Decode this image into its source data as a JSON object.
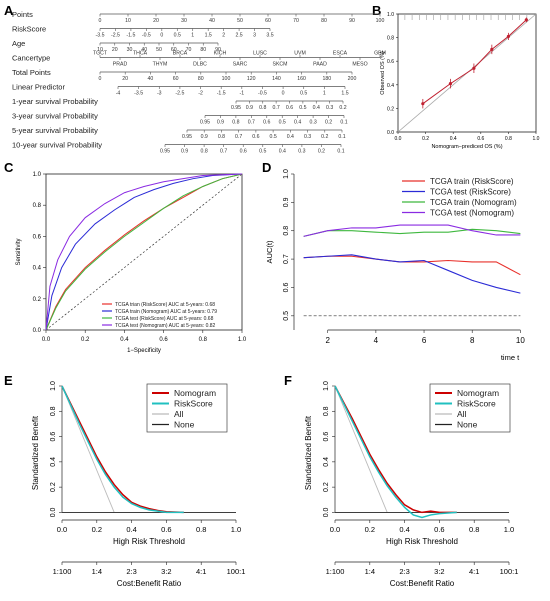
{
  "panels": {
    "A": "A",
    "B": "B",
    "C": "C",
    "D": "D",
    "E": "E",
    "F": "F"
  },
  "chart_data": [
    {
      "panel": "A",
      "type": "table",
      "rows": [
        {
          "label": "Points",
          "ticks": [
            "0",
            "10",
            "20",
            "30",
            "40",
            "50",
            "60",
            "70",
            "80",
            "90",
            "100"
          ]
        },
        {
          "label": "RiskScore",
          "ticks": [
            "-3.5",
            "-2.5",
            "-1.5",
            "-0.5",
            "0",
            "0.5",
            "1",
            "1.5",
            "2",
            "2.5",
            "3",
            "3.5"
          ]
        },
        {
          "label": "Age",
          "ticks": [
            "10",
            "20",
            "30",
            "40",
            "50",
            "60",
            "70",
            "80",
            "90"
          ]
        },
        {
          "label": "Cancertype",
          "ticks": [
            "TGCT",
            "PRAD",
            "THCA",
            "THYM",
            "BRCA",
            "DLBC",
            "KICH",
            "SARC",
            "LUSC",
            "SKCM",
            "UVM",
            "PAAD",
            "ESCA",
            "MESO",
            "GBM"
          ]
        },
        {
          "label": "Total Points",
          "ticks": [
            "0",
            "20",
            "40",
            "60",
            "80",
            "100",
            "120",
            "140",
            "160",
            "180",
            "200"
          ]
        },
        {
          "label": "Linear Predictor",
          "ticks": [
            "-4",
            "-3.5",
            "-3",
            "-2.5",
            "-2",
            "-1.5",
            "-1",
            "-0.5",
            "0",
            "0.5",
            "1",
            "1.5"
          ]
        },
        {
          "label": "1-year survival Probability",
          "ticks": [
            "0.95",
            "0.9",
            "0.8",
            "0.7",
            "0.6",
            "0.5",
            "0.4",
            "0.3",
            "0.2"
          ]
        },
        {
          "label": "3-year survival Probability",
          "ticks": [
            "0.95",
            "0.9",
            "0.8",
            "0.7",
            "0.6",
            "0.5",
            "0.4",
            "0.3",
            "0.2",
            "0.1"
          ]
        },
        {
          "label": "5-year survival Probability",
          "ticks": [
            "0.95",
            "0.9",
            "0.8",
            "0.7",
            "0.6",
            "0.5",
            "0.4",
            "0.3",
            "0.2",
            "0.1"
          ]
        },
        {
          "label": "10-year survival Probability",
          "ticks": [
            "0.95",
            "0.9",
            "0.8",
            "0.7",
            "0.6",
            "0.5",
            "0.4",
            "0.3",
            "0.2",
            "0.1"
          ]
        }
      ]
    },
    {
      "panel": "B",
      "type": "line",
      "xlabel": "Nomogram−prediced OS (%)",
      "ylabel": "Observed OS (%)",
      "xlim": [
        0,
        1
      ],
      "ylim": [
        0,
        1
      ],
      "xticks": [
        "0.0",
        "0.2",
        "0.4",
        "0.6",
        "0.8",
        "1.0"
      ],
      "yticks": [
        "0.0",
        "0.2",
        "0.4",
        "0.6",
        "0.8",
        "1.0"
      ],
      "points": [
        {
          "x": 0.18,
          "y": 0.24,
          "lo": 0.2,
          "hi": 0.28
        },
        {
          "x": 0.38,
          "y": 0.41,
          "lo": 0.37,
          "hi": 0.45
        },
        {
          "x": 0.55,
          "y": 0.54,
          "lo": 0.5,
          "hi": 0.58
        },
        {
          "x": 0.68,
          "y": 0.7,
          "lo": 0.66,
          "hi": 0.74
        },
        {
          "x": 0.8,
          "y": 0.81,
          "lo": 0.78,
          "hi": 0.84
        },
        {
          "x": 0.93,
          "y": 0.95,
          "lo": 0.93,
          "hi": 0.97
        }
      ]
    },
    {
      "panel": "C",
      "type": "line",
      "xlabel": "1−Specificity",
      "ylabel": "Sensitivity",
      "xlim": [
        0,
        1
      ],
      "ylim": [
        0,
        1
      ],
      "xticks": [
        "0.0",
        "0.2",
        "0.4",
        "0.6",
        "0.8",
        "1.0"
      ],
      "yticks": [
        "0.0",
        "0.2",
        "0.4",
        "0.6",
        "0.8",
        "1.0"
      ],
      "legend": "bottom-right",
      "series": [
        {
          "name": "TCGA trian (RiskScore) AUC at 5-years: 0.68",
          "color": "#e8302b",
          "x": [
            0,
            0.05,
            0.1,
            0.2,
            0.3,
            0.4,
            0.5,
            0.6,
            0.7,
            0.8,
            0.9,
            1.0
          ],
          "y": [
            0,
            0.15,
            0.26,
            0.4,
            0.51,
            0.61,
            0.7,
            0.78,
            0.85,
            0.92,
            0.97,
            1.0
          ]
        },
        {
          "name": "TCGA train (Nomogram) AUC at 5-years: 0.79",
          "color": "#2b2bd6",
          "x": [
            0,
            0.03,
            0.08,
            0.15,
            0.25,
            0.35,
            0.45,
            0.55,
            0.65,
            0.75,
            0.85,
            1.0
          ],
          "y": [
            0,
            0.22,
            0.4,
            0.55,
            0.68,
            0.77,
            0.85,
            0.9,
            0.94,
            0.97,
            0.99,
            1.0
          ]
        },
        {
          "name": "TCGA test (RiskScore) AUC at 5-years: 0.68",
          "color": "#3fb83f",
          "x": [
            0,
            0.05,
            0.1,
            0.2,
            0.3,
            0.4,
            0.5,
            0.6,
            0.7,
            0.8,
            0.9,
            1.0
          ],
          "y": [
            0,
            0.14,
            0.25,
            0.39,
            0.5,
            0.6,
            0.69,
            0.78,
            0.86,
            0.92,
            0.97,
            1.0
          ]
        },
        {
          "name": "TCGA test (Nomogram) AUC at 5-years: 0.82",
          "color": "#8a2be2",
          "x": [
            0,
            0.02,
            0.06,
            0.12,
            0.2,
            0.3,
            0.4,
            0.5,
            0.6,
            0.7,
            0.8,
            1.0
          ],
          "y": [
            0,
            0.28,
            0.45,
            0.6,
            0.72,
            0.81,
            0.88,
            0.92,
            0.95,
            0.97,
            0.99,
            1.0
          ]
        }
      ]
    },
    {
      "panel": "D",
      "type": "line",
      "xlabel": "time t",
      "ylabel": "AUC(t)",
      "xlim": [
        1,
        10
      ],
      "ylim": [
        0.45,
        1.0
      ],
      "xticks": [
        2,
        4,
        6,
        8,
        10
      ],
      "yticks": [
        "0.5",
        "0.6",
        "0.7",
        "0.8",
        "0.9",
        "1.0"
      ],
      "reference": 0.5,
      "legend": "top-right",
      "x": [
        1,
        2,
        3,
        4,
        5,
        6,
        7,
        8,
        9,
        10
      ],
      "series": [
        {
          "name": "TCGA train (RiskScore)",
          "color": "#e8302b",
          "y": [
            0.705,
            0.71,
            0.71,
            0.7,
            0.69,
            0.69,
            0.695,
            0.69,
            0.69,
            0.645
          ]
        },
        {
          "name": "TCGA test (RiskScore)",
          "color": "#2b2bd6",
          "y": [
            0.705,
            0.71,
            0.715,
            0.7,
            0.69,
            0.695,
            0.66,
            0.625,
            0.6,
            0.58
          ]
        },
        {
          "name": "TCGA train (Nomogram)",
          "color": "#3fb83f",
          "y": [
            0.78,
            0.8,
            0.8,
            0.795,
            0.79,
            0.795,
            0.795,
            0.805,
            0.8,
            0.79
          ]
        },
        {
          "name": "TCGA test (Nomogram)",
          "color": "#8a2be2",
          "y": [
            0.78,
            0.8,
            0.81,
            0.81,
            0.82,
            0.82,
            0.82,
            0.8,
            0.785,
            0.785
          ]
        }
      ]
    },
    {
      "panel": "E",
      "type": "line",
      "xlabel": "High Risk Threshold",
      "xlabel2": "Cost:Benefit Ratio",
      "ylabel": "Standardized Benefit",
      "xlim": [
        0,
        1
      ],
      "ylim": [
        0,
        1
      ],
      "xticks": [
        "0.0",
        "0.2",
        "0.4",
        "0.6",
        "0.8",
        "1.0"
      ],
      "yticks": [
        "0.0",
        "0.2",
        "0.4",
        "0.6",
        "0.8",
        "1.0"
      ],
      "ratio_ticks": [
        "1:100",
        "1:4",
        "2:3",
        "3:2",
        "4:1",
        "100:1"
      ],
      "legend": "top-right",
      "series": [
        {
          "name": "Nomogram",
          "color": "#cc0000",
          "x": [
            0,
            0.05,
            0.1,
            0.15,
            0.2,
            0.25,
            0.3,
            0.35,
            0.4,
            0.45,
            0.5,
            0.55,
            0.6,
            0.7
          ],
          "y": [
            1.0,
            0.86,
            0.72,
            0.58,
            0.44,
            0.32,
            0.22,
            0.14,
            0.08,
            0.05,
            0.03,
            0.015,
            0.005,
            0.0
          ]
        },
        {
          "name": "RiskScore",
          "color": "#20c0c0",
          "x": [
            0,
            0.05,
            0.1,
            0.15,
            0.2,
            0.25,
            0.3,
            0.35,
            0.4,
            0.45,
            0.5,
            0.55,
            0.6,
            0.7
          ],
          "y": [
            1.0,
            0.85,
            0.7,
            0.56,
            0.42,
            0.3,
            0.2,
            0.12,
            0.07,
            0.04,
            0.02,
            0.01,
            0.0,
            0.0
          ]
        },
        {
          "name": "All",
          "color": "#bbbbbb",
          "x": [
            0,
            0.3
          ],
          "y": [
            1.0,
            0.0
          ]
        },
        {
          "name": "None",
          "color": "#222222",
          "x": [
            0,
            1
          ],
          "y": [
            0,
            0
          ]
        }
      ]
    },
    {
      "panel": "F",
      "type": "line",
      "xlabel": "High Risk Threshold",
      "xlabel2": "Cost:Benefit Ratio",
      "ylabel": "Standardized Benefit",
      "xlim": [
        0,
        1
      ],
      "ylim": [
        0,
        1
      ],
      "xticks": [
        "0.0",
        "0.2",
        "0.4",
        "0.6",
        "0.8",
        "1.0"
      ],
      "yticks": [
        "0.0",
        "0.2",
        "0.4",
        "0.6",
        "0.8",
        "1.0"
      ],
      "ratio_ticks": [
        "1:100",
        "1:4",
        "2:3",
        "3:2",
        "4:1",
        "100:1"
      ],
      "legend": "top-right",
      "series": [
        {
          "name": "Nomogram",
          "color": "#cc0000",
          "x": [
            0,
            0.05,
            0.1,
            0.15,
            0.2,
            0.25,
            0.3,
            0.35,
            0.4,
            0.45,
            0.5,
            0.55,
            0.6,
            0.7
          ],
          "y": [
            1.0,
            0.87,
            0.74,
            0.6,
            0.46,
            0.34,
            0.23,
            0.14,
            0.06,
            0.02,
            0.0,
            0.01,
            0.0,
            0.0
          ]
        },
        {
          "name": "RiskScore",
          "color": "#20c0c0",
          "x": [
            0,
            0.05,
            0.1,
            0.15,
            0.2,
            0.25,
            0.3,
            0.35,
            0.4,
            0.45,
            0.5,
            0.55,
            0.6,
            0.7
          ],
          "y": [
            1.0,
            0.86,
            0.72,
            0.58,
            0.44,
            0.32,
            0.21,
            0.12,
            0.04,
            -0.02,
            -0.04,
            -0.02,
            -0.01,
            0.0
          ]
        },
        {
          "name": "All",
          "color": "#bbbbbb",
          "x": [
            0,
            0.3
          ],
          "y": [
            1.0,
            0.0
          ]
        },
        {
          "name": "None",
          "color": "#222222",
          "x": [
            0,
            1
          ],
          "y": [
            0,
            0
          ]
        }
      ]
    }
  ]
}
